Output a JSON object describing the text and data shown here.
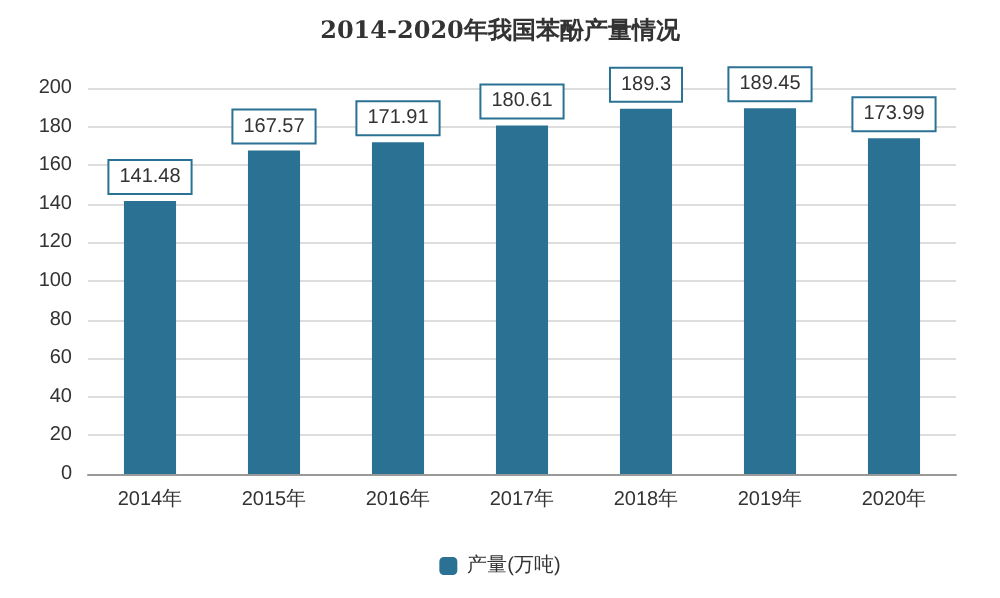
{
  "chart_data": {
    "type": "bar",
    "title": "2014-2020年我国苯酚产量情况",
    "categories": [
      "2014年",
      "2015年",
      "2016年",
      "2017年",
      "2018年",
      "2019年",
      "2020年"
    ],
    "series": [
      {
        "name": "产量(万吨)",
        "color": "#2a7193",
        "values": [
          141.48,
          167.57,
          171.91,
          180.61,
          189.3,
          189.45,
          173.99
        ]
      }
    ],
    "ylim": [
      0,
      200
    ],
    "yticks": [
      0,
      20,
      40,
      60,
      80,
      100,
      120,
      140,
      160,
      180,
      200
    ],
    "grid": "y",
    "legend": "bottom",
    "data_labels": true
  }
}
